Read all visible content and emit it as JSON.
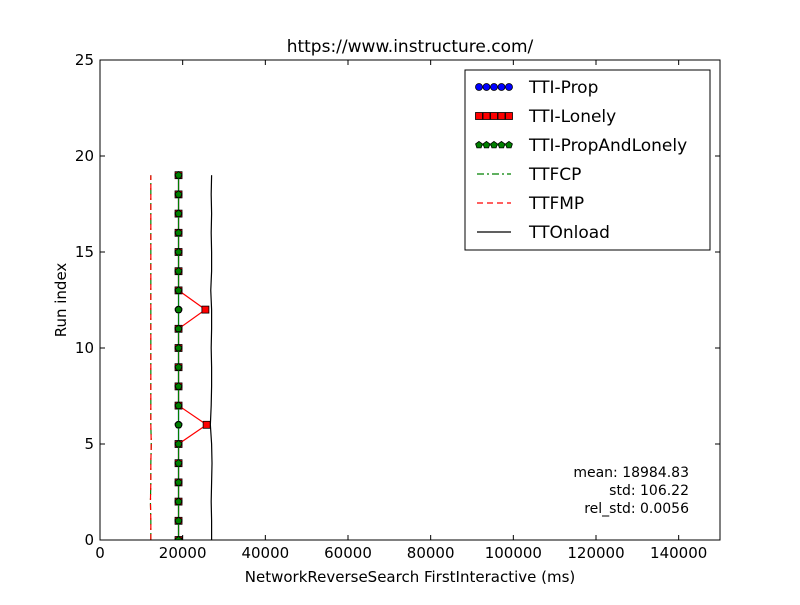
{
  "chart_data": {
    "type": "line",
    "title": "https://www.instructure.com/",
    "xlabel": "NetworkReverseSearch FirstInteractive (ms)",
    "ylabel": "Run index",
    "xlim": [
      0,
      150000
    ],
    "ylim": [
      0,
      25
    ],
    "xticks": [
      0,
      20000,
      40000,
      60000,
      80000,
      100000,
      120000,
      140000
    ],
    "yticks": [
      0,
      5,
      10,
      15,
      20,
      25
    ],
    "xtick_labels": [
      "0",
      "20000",
      "40000",
      "60000",
      "80000",
      "100000",
      "120000",
      "140000"
    ],
    "ytick_labels": [
      "0",
      "5",
      "10",
      "15",
      "20",
      "25"
    ],
    "grid": false,
    "legend_position": "top-right",
    "series": [
      {
        "name": "TTI-Prop",
        "color": "#0000ff",
        "marker": "circle",
        "line_style": "solid",
        "x": [
          19000,
          19000,
          19000,
          19000,
          19000,
          19000,
          19000,
          19000,
          19000,
          19000,
          19000,
          19000,
          19000,
          19000,
          19000,
          19000,
          19000,
          19000,
          19000,
          19000
        ],
        "y": [
          0,
          1,
          2,
          3,
          4,
          5,
          6,
          7,
          8,
          9,
          10,
          11,
          12,
          13,
          14,
          15,
          16,
          17,
          18,
          19
        ]
      },
      {
        "name": "TTI-Lonely",
        "color": "#ff0000",
        "marker": "square",
        "line_style": "solid",
        "x": [
          19000,
          19000,
          19000,
          19000,
          19000,
          19000,
          25800,
          19000,
          19000,
          19000,
          19000,
          19000,
          25500,
          19000,
          19000,
          19000,
          19000,
          19000,
          19000,
          19000
        ],
        "y": [
          0,
          1,
          2,
          3,
          4,
          5,
          6,
          7,
          8,
          9,
          10,
          11,
          12,
          13,
          14,
          15,
          16,
          17,
          18,
          19
        ]
      },
      {
        "name": "TTI-PropAndLonely",
        "color": "#008000",
        "marker": "pentagon",
        "line_style": "solid",
        "x": [
          19000,
          19000,
          19000,
          19000,
          19000,
          19000,
          19000,
          19000,
          19000,
          19000,
          19000,
          19000,
          19000,
          19000,
          19000,
          19000,
          19000,
          19000,
          19000,
          19000
        ],
        "y": [
          0,
          1,
          2,
          3,
          4,
          5,
          6,
          7,
          8,
          9,
          10,
          11,
          12,
          13,
          14,
          15,
          16,
          17,
          18,
          19
        ]
      },
      {
        "name": "TTFCP",
        "color": "#008000",
        "marker": "none",
        "line_style": "dashdot",
        "x": [
          12300,
          12300,
          12200,
          12300,
          12300,
          12400,
          12300,
          12300,
          12300,
          12300,
          12300,
          12300,
          12300,
          12300,
          12300,
          12300,
          12300,
          12300,
          12300,
          12300
        ],
        "y": [
          0,
          1,
          2,
          3,
          4,
          5,
          6,
          7,
          8,
          9,
          10,
          11,
          12,
          13,
          14,
          15,
          16,
          17,
          18,
          19
        ]
      },
      {
        "name": "TTFMP",
        "color": "#ff0000",
        "marker": "none",
        "line_style": "dashed",
        "x": [
          12300,
          12300,
          12200,
          12300,
          12300,
          12400,
          12300,
          12300,
          12300,
          12300,
          12300,
          12300,
          12300,
          12300,
          12300,
          12300,
          12300,
          12300,
          12300,
          12300
        ],
        "y": [
          0,
          1,
          2,
          3,
          4,
          5,
          6,
          7,
          8,
          9,
          10,
          11,
          12,
          13,
          14,
          15,
          16,
          17,
          18,
          19
        ]
      },
      {
        "name": "TTOnload",
        "color": "#000000",
        "marker": "none",
        "line_style": "solid",
        "x": [
          27000,
          27000,
          26900,
          27000,
          27100,
          27000,
          26700,
          26900,
          27000,
          27000,
          26900,
          27000,
          27000,
          26800,
          27000,
          27000,
          26900,
          27000,
          26900,
          27000
        ],
        "y": [
          0,
          1,
          2,
          3,
          4,
          5,
          6,
          7,
          8,
          9,
          10,
          11,
          12,
          13,
          14,
          15,
          16,
          17,
          18,
          19
        ]
      }
    ],
    "annotations": [
      "mean: 18984.83",
      "std: 106.22",
      "rel_std: 0.0056"
    ]
  }
}
